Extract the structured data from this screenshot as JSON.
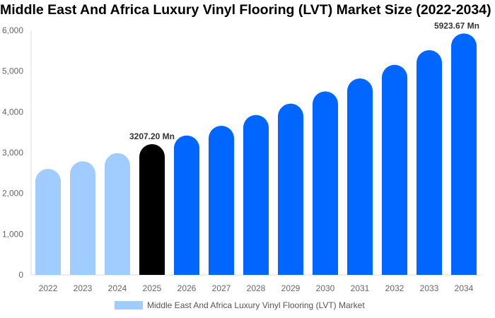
{
  "chart_data": {
    "type": "bar",
    "title": "Middle East And Africa Luxury Vinyl Flooring (LVT) Market Size (2022-2034)",
    "categories": [
      "2022",
      "2023",
      "2024",
      "2025",
      "2026",
      "2027",
      "2028",
      "2029",
      "2030",
      "2031",
      "2032",
      "2033",
      "2034"
    ],
    "series": [
      {
        "name": "Middle East And Africa Luxury Vinyl Flooring (LVT) Market",
        "values": [
          2601,
          2787,
          2988,
          3207.2,
          3420,
          3659,
          3924,
          4202,
          4502,
          4821,
          5155,
          5514,
          5923.67
        ]
      }
    ],
    "data_labels": [
      {
        "index": 3,
        "text": "3207.20 Mn"
      },
      {
        "index": 12,
        "text": "5923.67 Mn"
      }
    ],
    "yticks": [
      "0",
      "1,000",
      "2,000",
      "3,000",
      "4,000",
      "5,000",
      "6,000"
    ],
    "ylim": [
      0,
      6000
    ],
    "xlabel": "",
    "ylabel": "",
    "grid": false,
    "legend_position": "bottom",
    "colors": {
      "historical": "#a0ccff",
      "current": "#000000",
      "forecast": "#0066ff"
    }
  }
}
